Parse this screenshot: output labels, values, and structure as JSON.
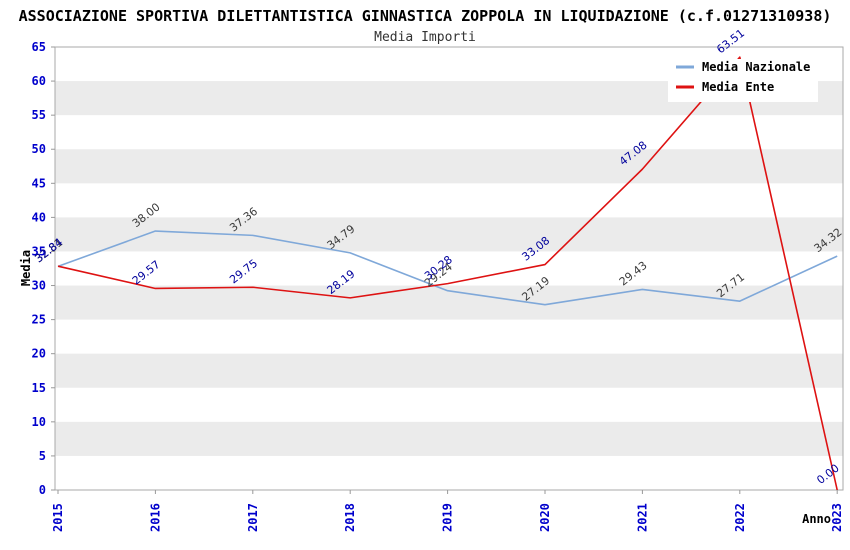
{
  "chart_data": {
    "type": "line",
    "title": "ASSOCIAZIONE SPORTIVA DILETTANTISTICA GINNASTICA ZOPPOLA IN LIQUIDAZIONE (c.f.01271310938)",
    "subtitle": "Media Importi",
    "xlabel": "Anno",
    "ylabel": "Media",
    "x": [
      "2015",
      "2016",
      "2017",
      "2018",
      "2019",
      "2020",
      "2021",
      "2022",
      "2023"
    ],
    "series": [
      {
        "name": "Media Nazionale",
        "color": "#7FA8D9",
        "label_color": "#3A3A3A",
        "values": [
          32.81,
          38.0,
          37.36,
          34.79,
          29.24,
          27.19,
          29.43,
          27.71,
          34.32
        ]
      },
      {
        "name": "Media Ente",
        "color": "#DE1212",
        "label_color": "#00009C",
        "values": [
          32.84,
          29.57,
          29.75,
          28.19,
          30.28,
          33.08,
          47.08,
          63.51,
          0.0
        ]
      }
    ],
    "ylim": [
      0,
      65
    ],
    "ytick_step": 5,
    "grid": "alternating-bands",
    "legend_position": "top-right",
    "colors": {
      "tick_label": "#0000CC",
      "band": "#EBEBEB",
      "plot_border": "#AAAAAA",
      "tick_mark": "#999999",
      "legend_bg": "#FFFFFF"
    }
  }
}
